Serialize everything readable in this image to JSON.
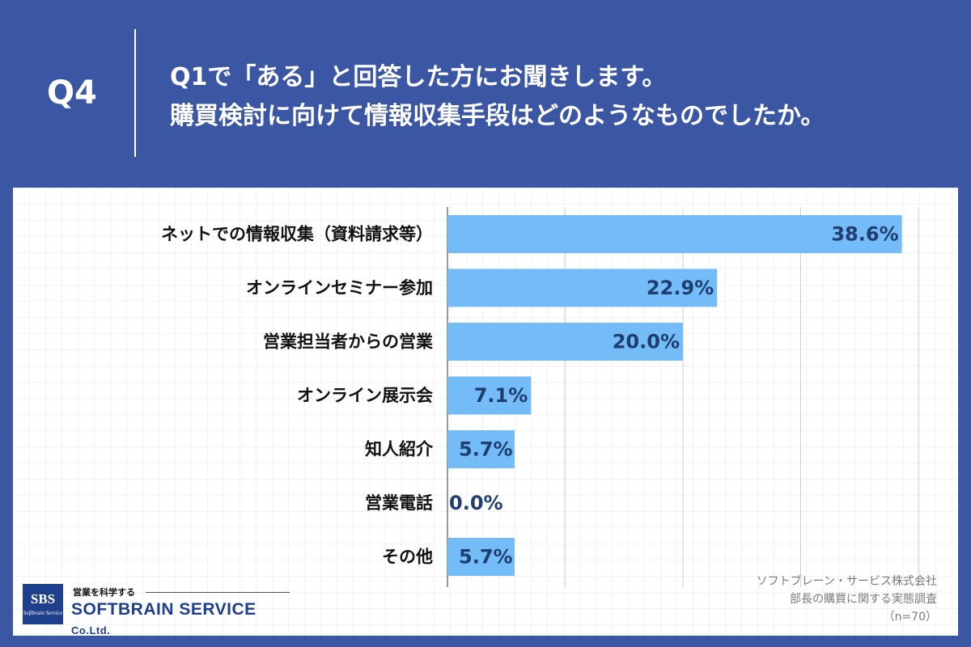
{
  "header": {
    "q_label": "Q4",
    "question_line1": "Q1で「ある」と回答した方にお聞きします。",
    "question_line2": "購買検討に向けて情報収集手段はどのようなものでしたか。"
  },
  "colors": {
    "background": "#3b56a2",
    "bar": "#74bcf8",
    "value_text": "#1f3d6e"
  },
  "chart_data": {
    "type": "bar",
    "orientation": "horizontal",
    "categories": [
      "ネットでの情報収集（資料請求等）",
      "オンラインセミナー参加",
      "営業担当者からの営業",
      "オンライン展示会",
      "知人紹介",
      "営業電話",
      "その他"
    ],
    "values": [
      38.6,
      22.9,
      20.0,
      7.1,
      5.7,
      0.0,
      5.7
    ],
    "value_labels": [
      "38.6%",
      "22.9%",
      "20.0%",
      "7.1%",
      "5.7%",
      "0.0%",
      "5.7%"
    ],
    "unit": "%",
    "xlim": [
      0,
      40
    ],
    "gridlines": [
      10,
      20,
      30,
      40
    ],
    "title": "",
    "xlabel": "",
    "ylabel": ""
  },
  "logo": {
    "box_text": "SBS",
    "box_subtext": "Softbrain Service",
    "tagline": "営業を科学する",
    "name": "SOFTBRAIN  SERVICE",
    "suffix": "Co.Ltd."
  },
  "source": {
    "company": "ソフトブレーン・サービス株式会社",
    "survey": "部長の購買に関する実態調査",
    "n": "（n=70）"
  }
}
